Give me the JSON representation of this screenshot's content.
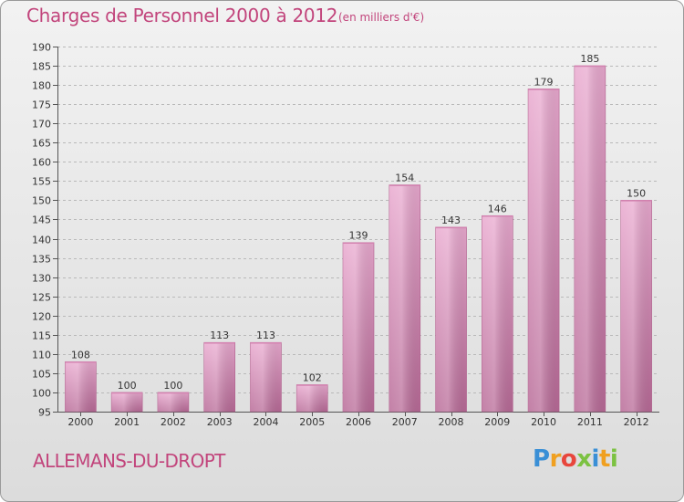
{
  "title": "Charges de Personnel 2000 à 2012",
  "subtitle": "(en milliers d'€)",
  "commune": "ALLEMANS-DU-DROPT",
  "logo": {
    "letters": [
      "P",
      "r",
      "o",
      "x",
      "i",
      "t",
      "i"
    ]
  },
  "colors": {
    "title": "#c2457c",
    "bar_light": "#e9a9cf",
    "bar_dark": "#b86a97",
    "grid": "#b9b9b9"
  },
  "chart_data": {
    "type": "bar",
    "title": "Charges de Personnel 2000 à 2012",
    "subtitle": "(en milliers d'€)",
    "categories": [
      "2000",
      "2001",
      "2002",
      "2003",
      "2004",
      "2005",
      "2006",
      "2007",
      "2008",
      "2009",
      "2010",
      "2011",
      "2012"
    ],
    "values": [
      108,
      100,
      100,
      113,
      113,
      102,
      139,
      154,
      143,
      146,
      179,
      185,
      150
    ],
    "ylim": [
      95,
      190
    ],
    "yticks": [
      95,
      100,
      105,
      110,
      115,
      120,
      125,
      130,
      135,
      140,
      145,
      150,
      155,
      160,
      165,
      170,
      175,
      180,
      185,
      190
    ],
    "grid": true,
    "xlabel": "",
    "ylabel": ""
  }
}
